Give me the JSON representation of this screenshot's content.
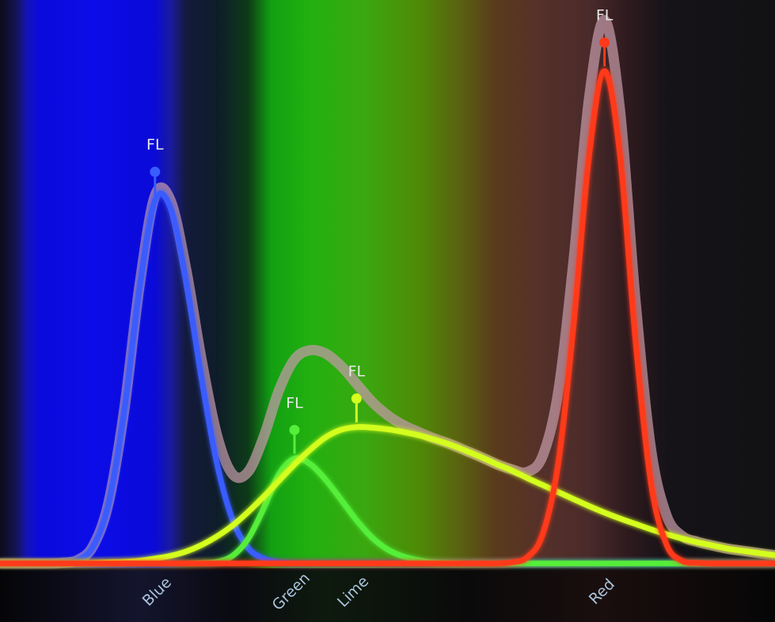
{
  "chart_data": {
    "type": "line",
    "x": [
      0,
      2,
      4,
      6,
      8,
      10,
      12,
      14,
      16,
      18,
      20,
      22,
      24,
      26,
      28,
      30,
      32,
      34,
      36,
      38,
      40,
      42,
      44,
      46,
      48,
      50,
      52,
      54,
      56,
      58,
      60,
      62,
      64,
      66,
      68,
      70,
      72,
      74,
      76,
      78,
      80,
      82,
      84,
      86,
      88,
      90,
      92,
      94,
      96,
      98,
      100
    ],
    "xlim": [
      0,
      100
    ],
    "ylim": [
      0,
      105
    ],
    "xticks": [
      {
        "value": 20.7,
        "label": "Blue"
      },
      {
        "value": 38,
        "label": "Green"
      },
      {
        "value": 46,
        "label": "Lime"
      },
      {
        "value": 78.1,
        "label": "Red"
      }
    ],
    "series": [
      {
        "color": "#c49aa8",
        "values": [
          0,
          0,
          0,
          0,
          0.1,
          0.6,
          3.2,
          11.2,
          28.1,
          51.3,
          68.0,
          67.1,
          54.5,
          37.7,
          23.7,
          16.5,
          16.9,
          23.3,
          32.0,
          37.7,
          39.4,
          38.8,
          36.5,
          33.2,
          29.9,
          27.4,
          25.6,
          24.3,
          23.1,
          22.1,
          20.9,
          19.7,
          18.4,
          17.4,
          16.9,
          19.8,
          31.4,
          55.8,
          85.8,
          100.4,
          83.7,
          48.5,
          21.1,
          8.9,
          5.1,
          4.0,
          3.3,
          2.7,
          2.3,
          1.9,
          1.5
        ]
      },
      {
        "color": "#3a5cff",
        "peak_label": "FL",
        "values": [
          0,
          0,
          0,
          0,
          0.1,
          0.6,
          3.1,
          11.0,
          27.8,
          50.8,
          67.1,
          65.7,
          52.3,
          34.2,
          18.4,
          8.1,
          2.9,
          0.9,
          0.2,
          0,
          0,
          0,
          0,
          0,
          0,
          0,
          0,
          0,
          0,
          0,
          0,
          0,
          0,
          0,
          0,
          0,
          0,
          0,
          0,
          0,
          0,
          0,
          0,
          0,
          0,
          0,
          0,
          0,
          0,
          0,
          0
        ]
      },
      {
        "color": "#55ee3a",
        "peak_label": "FL",
        "values": [
          0,
          0,
          0,
          0,
          0,
          0,
          0,
          0,
          0,
          0,
          0,
          0,
          0,
          0.1,
          0.3,
          1.4,
          4.5,
          10.1,
          16.5,
          19.4,
          18.4,
          15.5,
          11.8,
          8.0,
          4.8,
          2.6,
          1.3,
          0.6,
          0.2,
          0.1,
          0,
          0,
          0,
          0,
          0,
          0,
          0,
          0,
          0,
          0,
          0,
          0,
          0,
          0,
          0,
          0,
          0,
          0,
          0,
          0,
          0
        ]
      },
      {
        "color": "#d4ff1e",
        "peak_label": "FL",
        "values": [
          0,
          0,
          0,
          0,
          0,
          0,
          0.1,
          0.2,
          0.3,
          0.5,
          0.9,
          1.4,
          2.2,
          3.4,
          5.0,
          7.0,
          9.5,
          12.3,
          15.3,
          18.3,
          21.0,
          23.3,
          24.7,
          25.2,
          25.1,
          24.8,
          24.3,
          23.7,
          22.9,
          22.0,
          20.9,
          19.7,
          18.4,
          17.2,
          15.8,
          14.5,
          13.2,
          11.9,
          10.6,
          9.4,
          8.3,
          7.3,
          6.3,
          5.4,
          4.6,
          3.9,
          3.3,
          2.7,
          2.3,
          1.9,
          1.5
        ]
      },
      {
        "color": "#ff3a1a",
        "peak_label": "FL",
        "values": [
          0,
          0,
          0,
          0,
          0,
          0,
          0,
          0,
          0,
          0,
          0,
          0,
          0,
          0,
          0,
          0,
          0,
          0,
          0,
          0,
          0,
          0,
          0,
          0,
          0,
          0,
          0,
          0,
          0,
          0,
          0,
          0,
          0,
          0.2,
          1.1,
          5.3,
          18.2,
          43.9,
          75.2,
          91.0,
          75.4,
          41.2,
          14.8,
          3.5,
          0.5,
          0.1,
          0,
          0,
          0,
          0,
          0
        ]
      }
    ]
  }
}
